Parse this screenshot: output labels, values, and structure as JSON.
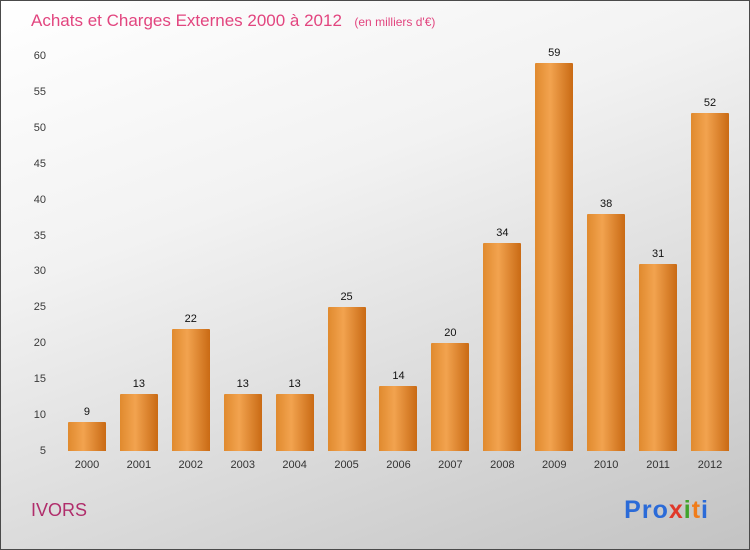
{
  "title": "Achats et Charges Externes 2000 à 2012",
  "subtitle": "(en milliers d'€)",
  "colors": {
    "title": "#e2457f",
    "subtitle": "#e2457f",
    "company": "#b02d6b",
    "bar_light": "#f2a34f",
    "bar_dark": "#c96a14"
  },
  "footer": {
    "company": "IVORS",
    "brand_letters": [
      {
        "ch": "P",
        "color": "#2b6bd8"
      },
      {
        "ch": "r",
        "color": "#2b6bd8"
      },
      {
        "ch": "o",
        "color": "#2b6bd8"
      },
      {
        "ch": "x",
        "color": "#e0382a"
      },
      {
        "ch": "i",
        "color": "#3fa32c"
      },
      {
        "ch": "t",
        "color": "#f07c1a"
      },
      {
        "ch": "i",
        "color": "#2b6bd8"
      }
    ]
  },
  "chart_data": {
    "type": "bar",
    "title": "Achats et Charges Externes 2000 à 2012",
    "subtitle": "(en milliers d'€)",
    "categories": [
      "2000",
      "2001",
      "2002",
      "2003",
      "2004",
      "2005",
      "2006",
      "2007",
      "2008",
      "2009",
      "2010",
      "2011",
      "2012"
    ],
    "values": [
      9,
      13,
      22,
      13,
      13,
      25,
      14,
      20,
      34,
      59,
      38,
      31,
      52
    ],
    "xlabel": "",
    "ylabel": "",
    "ylim": [
      5,
      60
    ],
    "yticks": [
      5,
      10,
      15,
      20,
      25,
      30,
      35,
      40,
      45,
      50,
      55,
      60
    ],
    "grid": false,
    "legend": "none",
    "bar_color": "#e08a2e"
  }
}
